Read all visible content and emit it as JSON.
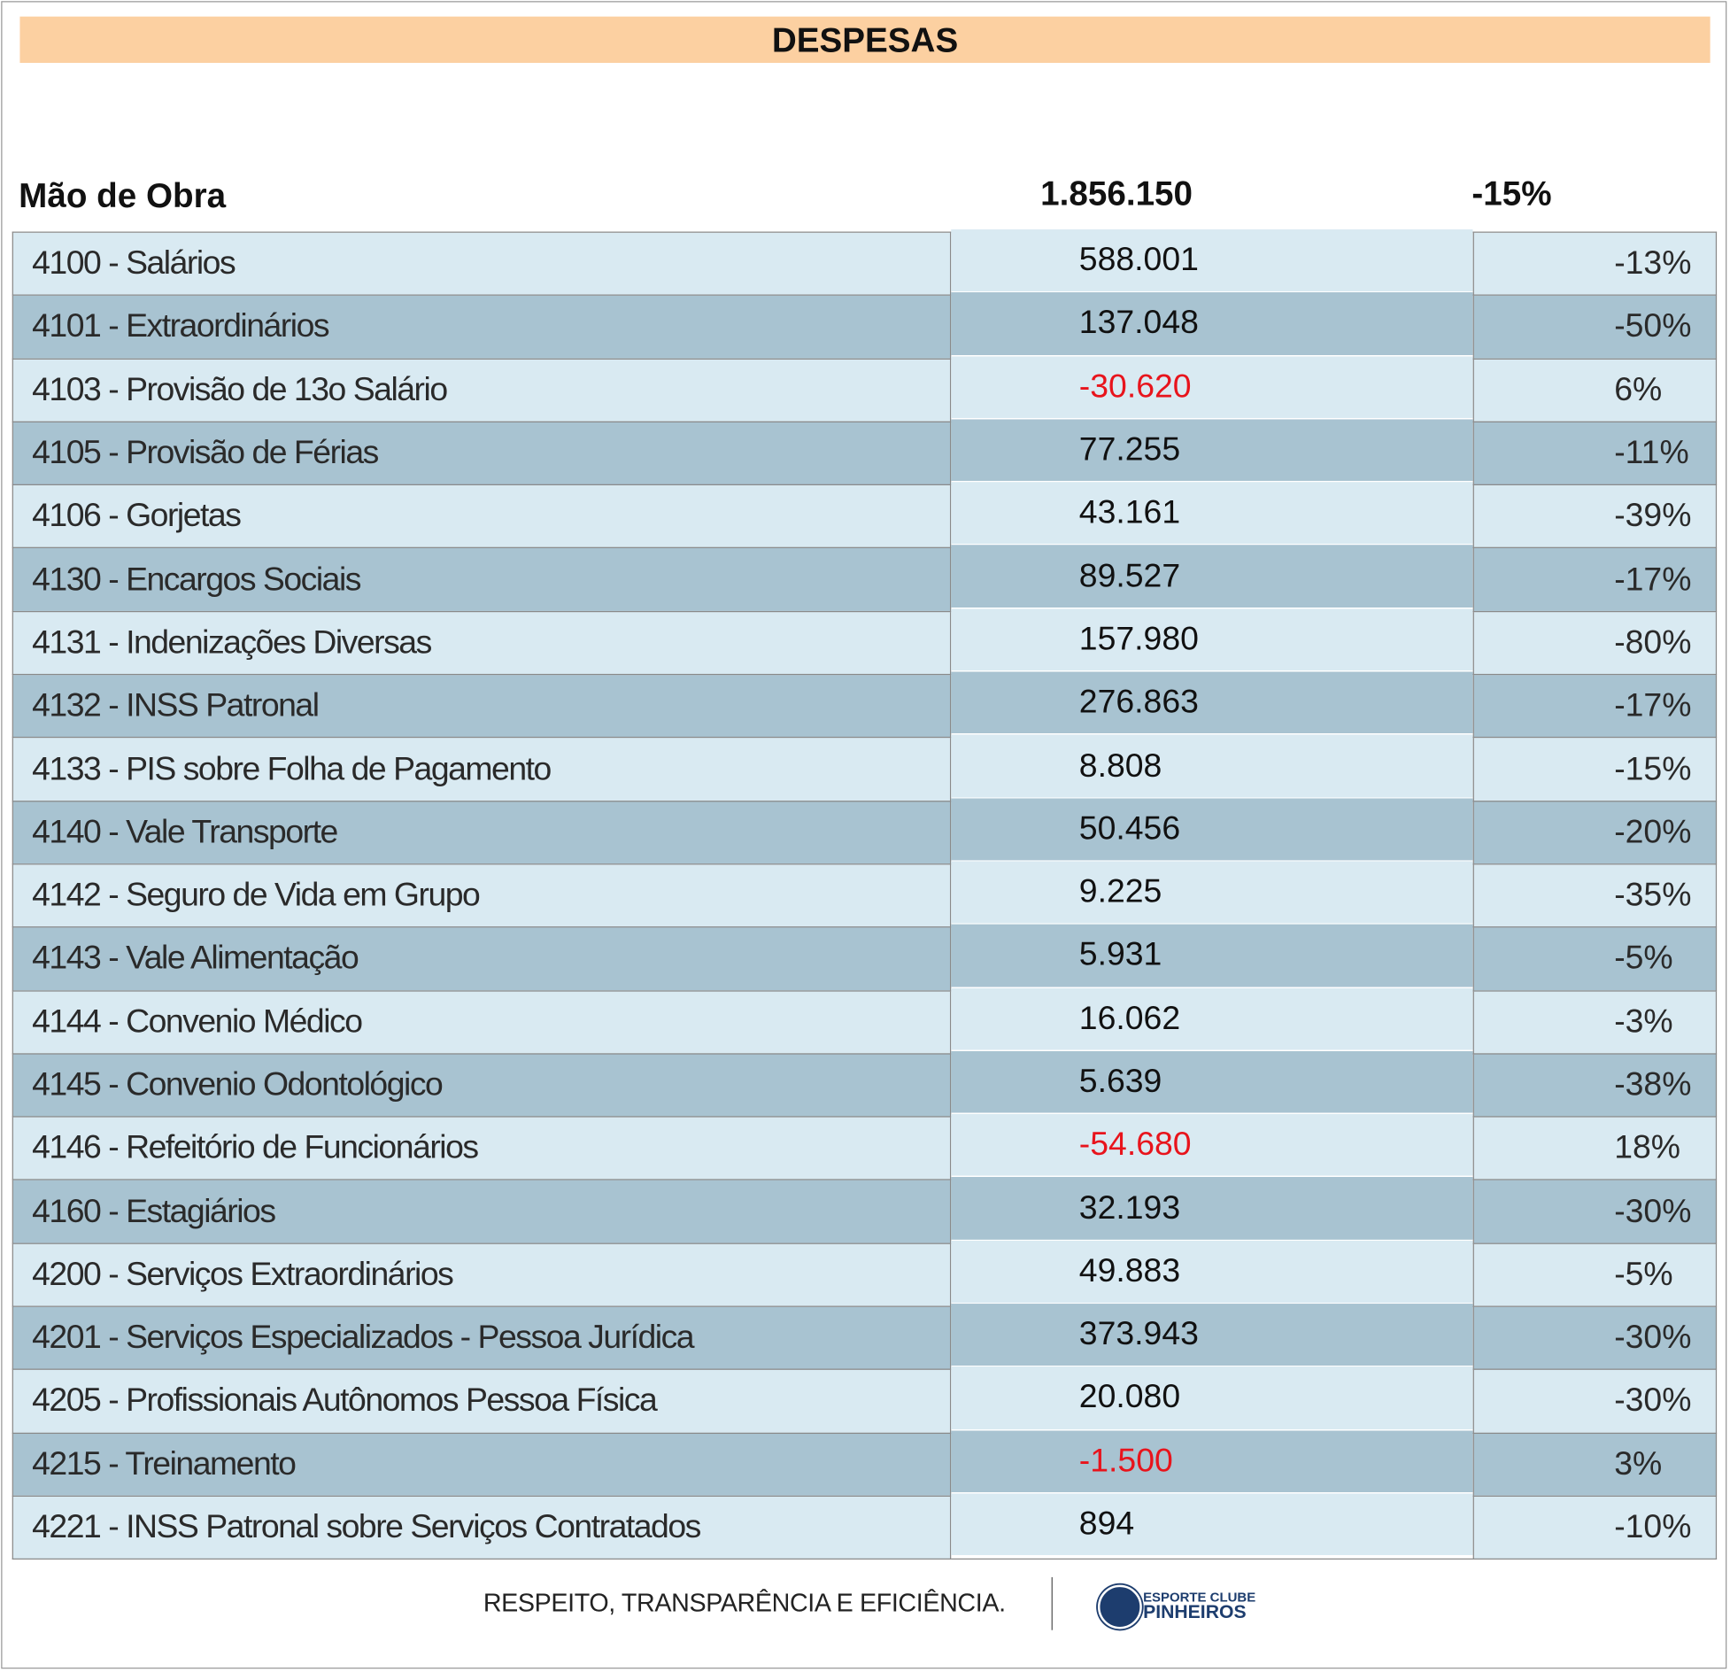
{
  "header": {
    "title": "DESPESAS"
  },
  "section": {
    "label": "Mão de Obra",
    "total": "1.856.150",
    "change": "-15%"
  },
  "table": {
    "rows": [
      [
        "4100 - Salários",
        "588.001",
        "-13%"
      ],
      [
        "4101 - Extraordinários",
        "137.048",
        "-50%"
      ],
      [
        "4103 - Provisão de 13o Salário",
        "-30.620",
        "6%"
      ],
      [
        "4105 - Provisão de Férias",
        "77.255",
        "-11%"
      ],
      [
        "4106 - Gorjetas",
        "43.161",
        "-39%"
      ],
      [
        "4130 - Encargos Sociais",
        "89.527",
        "-17%"
      ],
      [
        "4131 - Indenizações Diversas",
        "157.980",
        "-80%"
      ],
      [
        "4132 - INSS Patronal",
        "276.863",
        "-17%"
      ],
      [
        "4133 - PIS sobre Folha de Pagamento",
        "8.808",
        "-15%"
      ],
      [
        "4140 - Vale Transporte",
        "50.456",
        "-20%"
      ],
      [
        "4142 - Seguro de Vida em Grupo",
        "9.225",
        "-35%"
      ],
      [
        "4143 - Vale Alimentação",
        "5.931",
        "-5%"
      ],
      [
        "4144 - Convenio Médico",
        "16.062",
        "-3%"
      ],
      [
        "4145 - Convenio Odontológico",
        "5.639",
        "-38%"
      ],
      [
        "4146 - Refeitório de Funcionários",
        "-54.680",
        "18%"
      ],
      [
        "4160 - Estagiários",
        "32.193",
        "-30%"
      ],
      [
        "4200 - Serviços Extraordinários",
        "49.883",
        "-5%"
      ],
      [
        "4201 - Serviços Especializados - Pessoa Jurídica",
        "373.943",
        "-30%"
      ],
      [
        "4205 - Profissionais Autônomos Pessoa Física",
        "20.080",
        "-30%"
      ],
      [
        "4215 - Treinamento",
        "-1.500",
        "3%"
      ],
      [
        "4221 - INSS Patronal sobre Serviços Contratados",
        "894",
        "-10%"
      ]
    ]
  },
  "footer": {
    "slogan": "RESPEITO, TRANSPARÊNCIA E EFICIÊNCIA.",
    "logo_top": "ESPORTE CLUBE",
    "logo_name": "PINHEIROS"
  }
}
